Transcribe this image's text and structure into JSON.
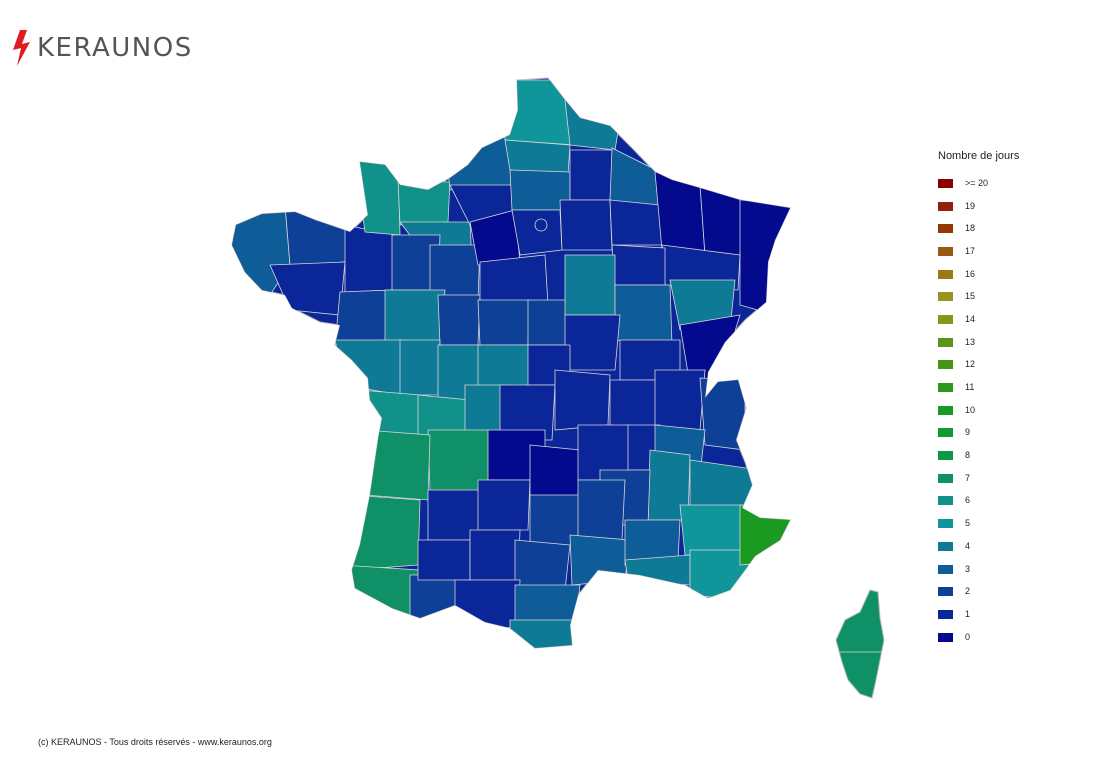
{
  "brand": {
    "name": "KERAUNOS",
    "bolt_color": "#e11b22",
    "text_color": "#555555"
  },
  "legend": {
    "title": "Nombre de jours",
    "items": [
      {
        "label": ">= 20",
        "color": "#8b0000"
      },
      {
        "label": "19",
        "color": "#95200a"
      },
      {
        "label": "18",
        "color": "#923a06"
      },
      {
        "label": "17",
        "color": "#965a10"
      },
      {
        "label": "16",
        "color": "#9a7a12"
      },
      {
        "label": "15",
        "color": "#9a9420"
      },
      {
        "label": "14",
        "color": "#7d9a1a"
      },
      {
        "label": "13",
        "color": "#5e931a"
      },
      {
        "label": "12",
        "color": "#44961a"
      },
      {
        "label": "11",
        "color": "#2b9a1c"
      },
      {
        "label": "10",
        "color": "#1a9a20"
      },
      {
        "label": "9",
        "color": "#109a33"
      },
      {
        "label": "8",
        "color": "#0e9748"
      },
      {
        "label": "7",
        "color": "#109066"
      },
      {
        "label": "6",
        "color": "#10928a"
      },
      {
        "label": "5",
        "color": "#10969a"
      },
      {
        "label": "4",
        "color": "#0e7a96"
      },
      {
        "label": "3",
        "color": "#0e5c98"
      },
      {
        "label": "2",
        "color": "#0e4098"
      },
      {
        "label": "1",
        "color": "#0a2698"
      },
      {
        "label": "0",
        "color": "#040a8e"
      }
    ]
  },
  "footer": {
    "copyright": "(c) KERAUNOS - Tous droits réservés - www.keraunos.org"
  }
}
